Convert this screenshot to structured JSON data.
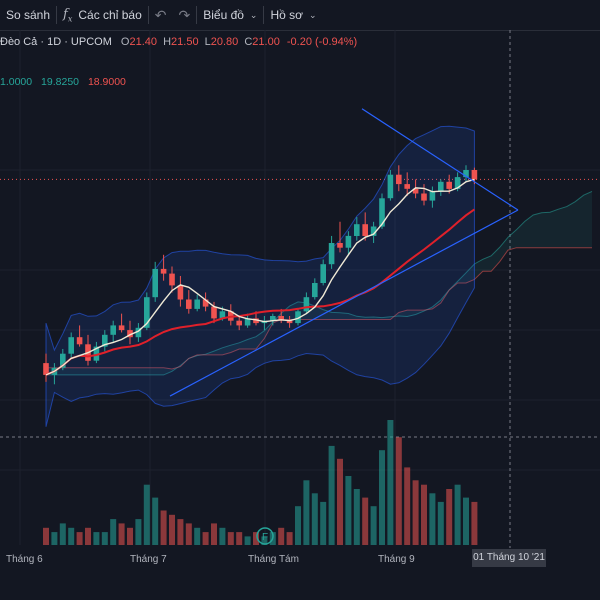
{
  "toolbar": {
    "compare_label": "So sánh",
    "indicators_label": "Các chỉ báo",
    "chart_type_label": "Biểu đồ",
    "profile_label": "Hồ sơ"
  },
  "legend": {
    "symbol": "Đèo Cả · 1D · UPCOM",
    "open_label": "O",
    "open": "21.40",
    "high_label": "H",
    "high": "21.50",
    "low_label": "L",
    "low": "20.80",
    "close_label": "C",
    "close": "21.00",
    "change": "-0.20 (-0.94%)"
  },
  "indicator": {
    "v1": "1.0000",
    "v2": "19.8250",
    "v3": "18.9000"
  },
  "x_axis": {
    "labels": [
      "Tháng 6",
      "Tháng 7",
      "Tháng Tám",
      "Tháng 9"
    ],
    "cursor_label": "01 Tháng 10 '21"
  },
  "colors": {
    "up": "#26a69a",
    "down": "#ef5350",
    "background": "#131722",
    "trendline": "#2962ff"
  },
  "chart_data": {
    "type": "candlestick",
    "x": [
      "Tháng 6",
      "Tháng 7",
      "Tháng Tám",
      "Tháng 9"
    ],
    "values": [
      [
        13.2,
        13.6,
        12.4,
        12.7
      ],
      [
        12.7,
        13.2,
        12.3,
        13.0
      ],
      [
        13.0,
        13.8,
        12.9,
        13.6
      ],
      [
        13.6,
        14.5,
        13.4,
        14.3
      ],
      [
        14.3,
        14.8,
        13.9,
        14.0
      ],
      [
        14.0,
        14.4,
        13.1,
        13.3
      ],
      [
        13.3,
        14.1,
        13.2,
        13.9
      ],
      [
        13.9,
        14.6,
        13.7,
        14.4
      ],
      [
        14.4,
        15.0,
        14.1,
        14.8
      ],
      [
        14.8,
        15.3,
        14.5,
        14.6
      ],
      [
        14.6,
        15.0,
        14.0,
        14.3
      ],
      [
        14.3,
        14.9,
        14.1,
        14.7
      ],
      [
        14.7,
        16.2,
        14.6,
        16.0
      ],
      [
        16.0,
        17.5,
        15.8,
        17.2
      ],
      [
        17.2,
        17.8,
        16.7,
        17.0
      ],
      [
        17.0,
        17.3,
        16.2,
        16.5
      ],
      [
        16.5,
        16.9,
        15.6,
        15.9
      ],
      [
        15.9,
        16.3,
        15.3,
        15.5
      ],
      [
        15.5,
        16.1,
        15.4,
        15.9
      ],
      [
        15.9,
        16.2,
        15.4,
        15.6
      ],
      [
        15.6,
        15.8,
        14.9,
        15.1
      ],
      [
        15.1,
        15.6,
        15.0,
        15.4
      ],
      [
        15.4,
        15.7,
        14.8,
        15.0
      ],
      [
        15.0,
        15.2,
        14.6,
        14.8
      ],
      [
        14.8,
        15.3,
        14.7,
        15.1
      ],
      [
        15.1,
        15.4,
        14.8,
        14.9
      ],
      [
        14.9,
        15.2,
        14.6,
        15.0
      ],
      [
        15.0,
        15.3,
        14.8,
        15.2
      ],
      [
        15.2,
        15.5,
        14.9,
        15.0
      ],
      [
        15.0,
        15.2,
        14.7,
        14.9
      ],
      [
        14.9,
        15.5,
        14.8,
        15.4
      ],
      [
        15.4,
        16.2,
        15.3,
        16.0
      ],
      [
        16.0,
        16.8,
        15.9,
        16.6
      ],
      [
        16.6,
        17.6,
        16.5,
        17.4
      ],
      [
        17.4,
        18.6,
        17.2,
        18.3
      ],
      [
        18.3,
        19.2,
        17.9,
        18.1
      ],
      [
        18.1,
        18.8,
        17.8,
        18.6
      ],
      [
        18.6,
        19.4,
        18.4,
        19.1
      ],
      [
        19.1,
        19.6,
        18.4,
        18.6
      ],
      [
        18.6,
        19.2,
        18.3,
        19.0
      ],
      [
        19.0,
        20.4,
        18.9,
        20.2
      ],
      [
        20.2,
        21.4,
        20.1,
        21.2
      ],
      [
        21.2,
        21.6,
        20.5,
        20.8
      ],
      [
        20.8,
        21.3,
        20.3,
        20.6
      ],
      [
        20.6,
        21.0,
        20.2,
        20.4
      ],
      [
        20.4,
        20.8,
        19.9,
        20.1
      ],
      [
        20.1,
        20.7,
        19.8,
        20.5
      ],
      [
        20.5,
        21.0,
        20.3,
        20.9
      ],
      [
        20.9,
        21.2,
        20.4,
        20.6
      ],
      [
        20.6,
        21.3,
        20.5,
        21.1
      ],
      [
        21.1,
        21.6,
        20.9,
        21.4
      ],
      [
        21.4,
        21.5,
        20.8,
        21.0
      ]
    ],
    "volume": [
      0.4,
      0.3,
      0.5,
      0.4,
      0.3,
      0.4,
      0.3,
      0.3,
      0.6,
      0.5,
      0.4,
      0.6,
      1.4,
      1.1,
      0.8,
      0.7,
      0.6,
      0.5,
      0.4,
      0.3,
      0.5,
      0.4,
      0.3,
      0.3,
      0.2,
      0.3,
      0.2,
      0.3,
      0.4,
      0.3,
      0.9,
      1.5,
      1.2,
      1.0,
      2.3,
      2.0,
      1.6,
      1.3,
      1.1,
      0.9,
      2.2,
      2.9,
      2.5,
      1.8,
      1.5,
      1.4,
      1.2,
      1.0,
      1.3,
      1.4,
      1.1,
      1.0
    ],
    "trendlines": [
      {
        "from": [
          "Tháng 7",
          11.8
        ],
        "to": [
          "01 Tháng 10 '21",
          19.7
        ]
      },
      {
        "from": [
          "Tháng 9",
          24.0
        ],
        "to": [
          "01 Tháng 10 '21",
          19.7
        ]
      }
    ]
  }
}
